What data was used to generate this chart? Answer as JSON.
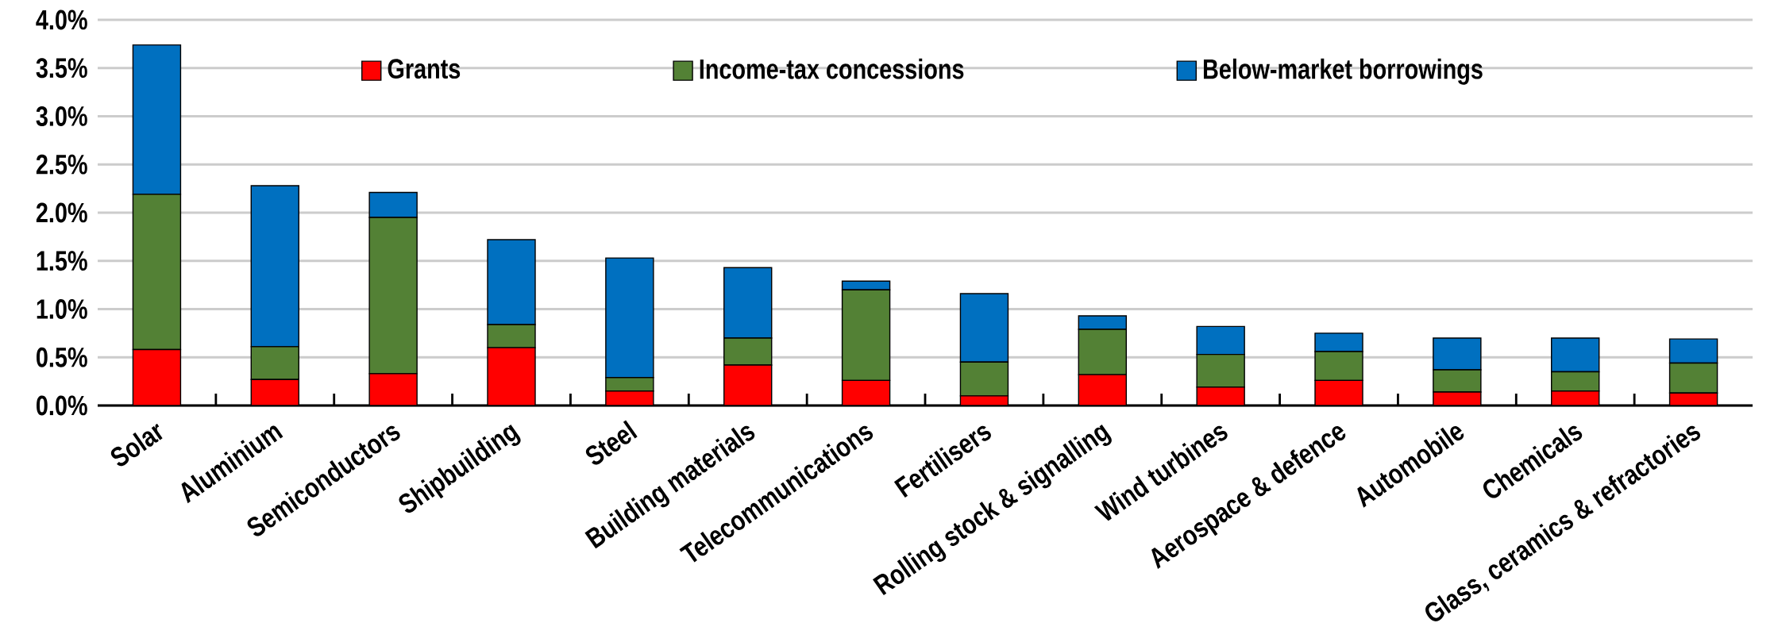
{
  "chart_data": {
    "type": "bar",
    "stacked": true,
    "categories": [
      "Solar",
      "Aluminium",
      "Semiconductors",
      "Shipbuilding",
      "Steel",
      "Building materials",
      "Telecommunications",
      "Fertilisers",
      "Rolling stock & signalling",
      "Wind turbines",
      "Aerospace & defence",
      "Automobile",
      "Chemicals",
      "Glass, ceramics & refractories"
    ],
    "series": [
      {
        "name": "Grants",
        "color": "#ff0000",
        "values": [
          0.58,
          0.27,
          0.33,
          0.6,
          0.15,
          0.42,
          0.26,
          0.1,
          0.32,
          0.19,
          0.26,
          0.14,
          0.15,
          0.13
        ]
      },
      {
        "name": "Income-tax concessions",
        "color": "#538135",
        "values": [
          1.61,
          0.34,
          1.62,
          0.24,
          0.14,
          0.28,
          0.94,
          0.35,
          0.47,
          0.34,
          0.3,
          0.23,
          0.2,
          0.31
        ]
      },
      {
        "name": "Below-market borrowings",
        "color": "#0070c0",
        "values": [
          1.55,
          1.67,
          0.26,
          0.88,
          1.24,
          0.73,
          0.09,
          0.71,
          0.14,
          0.29,
          0.19,
          0.33,
          0.35,
          0.25
        ]
      }
    ],
    "ylim": [
      0,
      4.0
    ],
    "yticks": [
      {
        "value": 0,
        "label": "0.0%"
      },
      {
        "value": 0.5,
        "label": "0.5%"
      },
      {
        "value": 1.0,
        "label": "1.0%"
      },
      {
        "value": 1.5,
        "label": "1.5%"
      },
      {
        "value": 2.0,
        "label": "2.0%"
      },
      {
        "value": 2.5,
        "label": "2.5%"
      },
      {
        "value": 3.0,
        "label": "3.0%"
      },
      {
        "value": 3.5,
        "label": "3.5%"
      },
      {
        "value": 4.0,
        "label": "4.0%"
      }
    ],
    "grid": "y",
    "legend": "top"
  }
}
